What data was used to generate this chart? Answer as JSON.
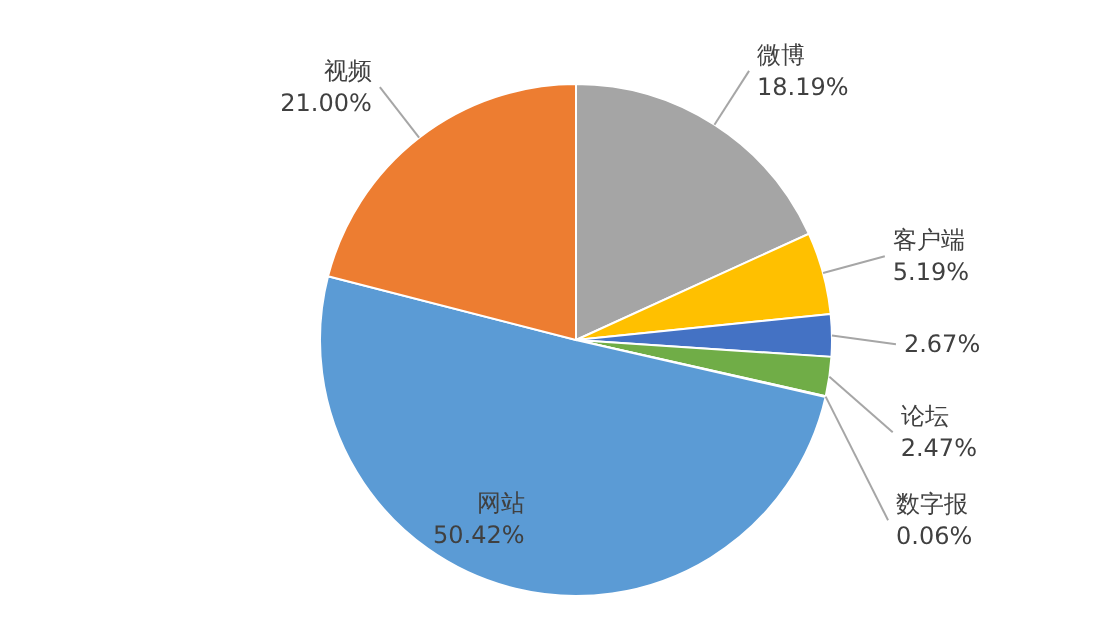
{
  "chart_data": {
    "type": "pie",
    "categories": [
      "微博",
      "客户端",
      null,
      "论坛",
      "数字报",
      "网站",
      "视频"
    ],
    "values": [
      18.19,
      5.19,
      2.67,
      2.47,
      0.06,
      50.42,
      21.0
    ],
    "value_labels": [
      "18.19%",
      "5.19%",
      "2.67%",
      "2.47%",
      "0.06%",
      "50.42%",
      "21.00%"
    ],
    "colors": [
      "#a5a5a5",
      "#ffc000",
      "#4472c4",
      "#70ad47",
      "#264478",
      "#5b9bd5",
      "#ed7d31"
    ]
  }
}
